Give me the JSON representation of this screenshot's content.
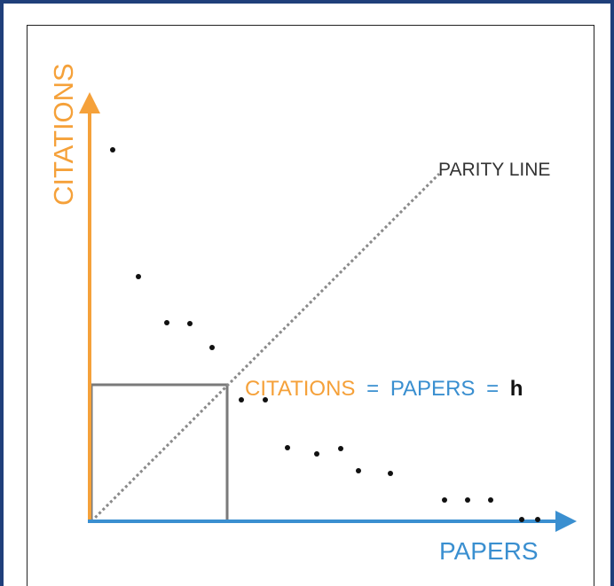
{
  "axes": {
    "y_label": "CITATIONS",
    "x_label": "PAPERS"
  },
  "parity_label": "PARITY LINE",
  "equation": {
    "citations": "CITATIONS",
    "eq1": "=",
    "papers": "PAPERS",
    "eq2": "=",
    "h": "h"
  },
  "colors": {
    "citations": "#f5a13a",
    "papers": "#3a8fd0",
    "frame": "#1f3f7a",
    "box": "#7a7a7a",
    "dots": "#111111"
  }
}
